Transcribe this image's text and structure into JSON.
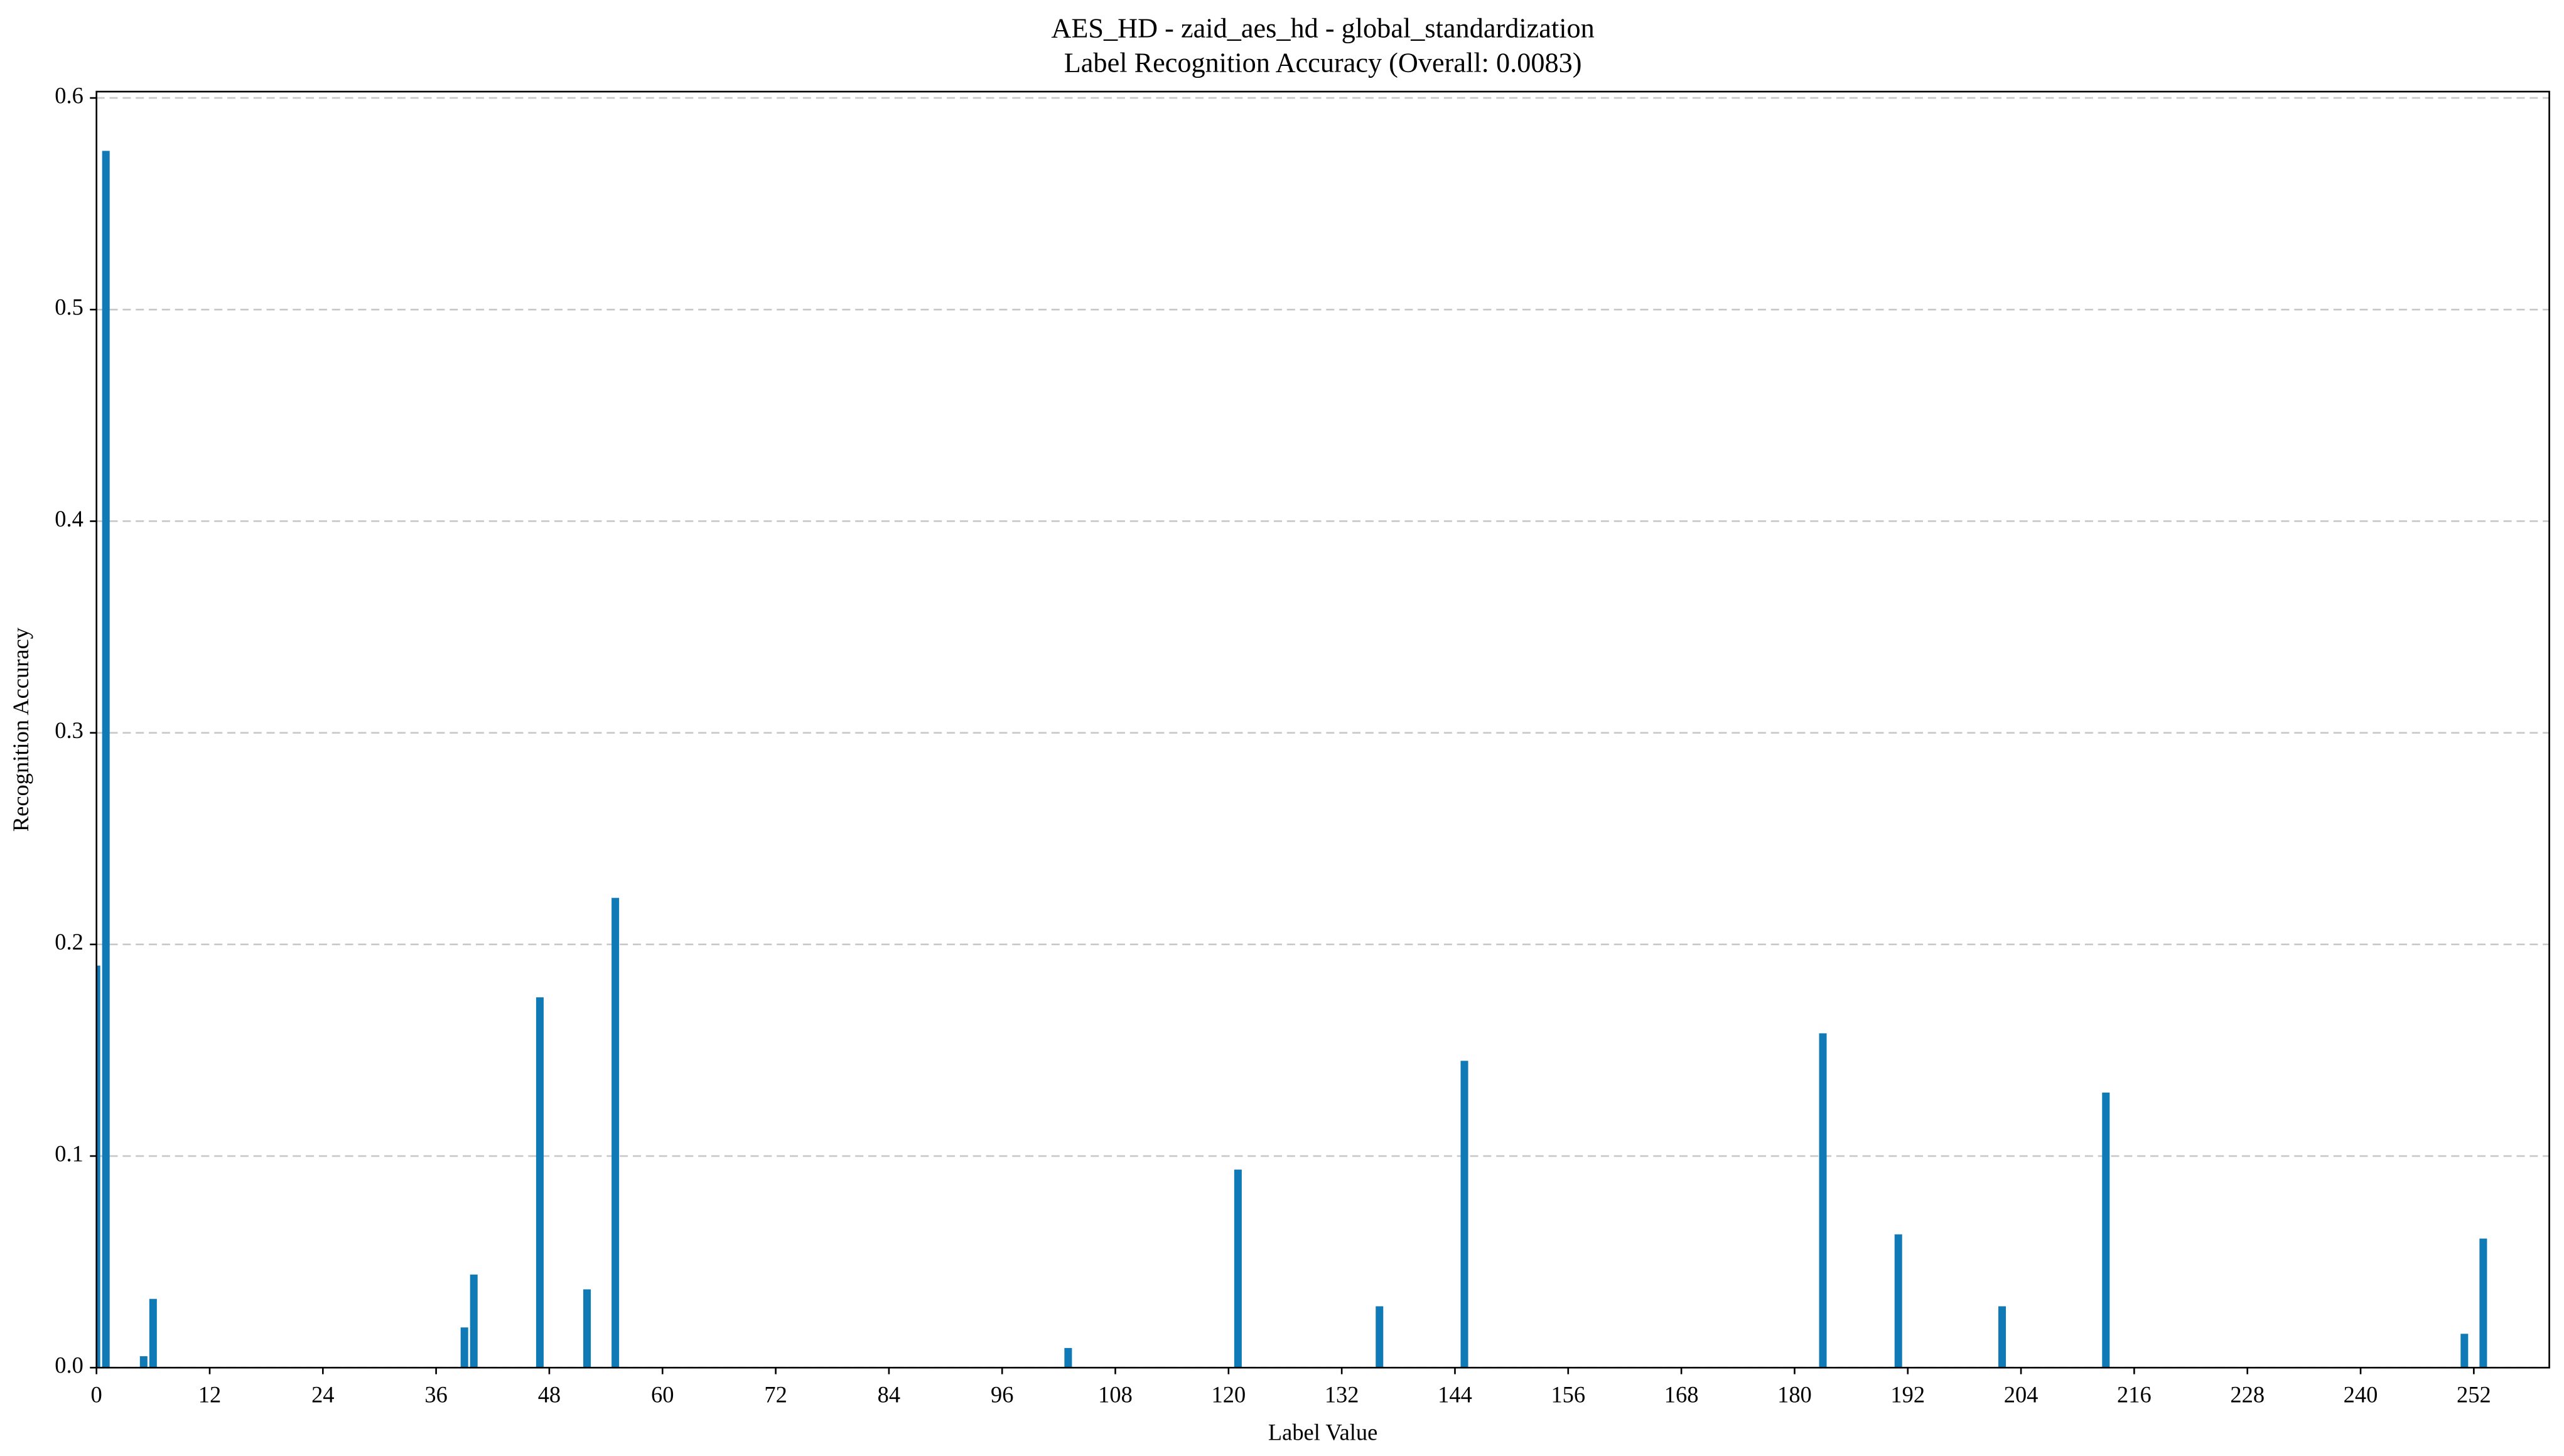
{
  "chart_data": {
    "type": "bar",
    "title": "AES_HD - zaid_aes_hd - global_standardization",
    "subtitle": "Label Recognition Accuracy (Overall: 0.0083)",
    "x_label": "Label Value",
    "y_label": "Recognition Accuracy",
    "x": [
      0,
      1,
      5,
      6,
      39,
      40,
      47,
      52,
      55,
      103,
      121,
      136,
      145,
      183,
      191,
      202,
      213,
      251,
      253
    ],
    "values": [
      0.19,
      0.575,
      0.0054,
      0.0325,
      0.019,
      0.044,
      0.175,
      0.037,
      0.222,
      0.0093,
      0.0936,
      0.029,
      0.145,
      0.158,
      0.063,
      0.029,
      0.13,
      0.016,
      0.061
    ],
    "color": "#0f7ab5",
    "bar_width": 0.8,
    "xlim": [
      0,
      260
    ],
    "ylim": [
      0,
      0.603
    ],
    "xticks": [
      0,
      12,
      24,
      36,
      48,
      60,
      72,
      84,
      96,
      108,
      120,
      132,
      144,
      156,
      168,
      180,
      192,
      204,
      216,
      228,
      240,
      252
    ],
    "yticks": [
      {
        "value": 0,
        "label": "0.0"
      },
      0.1,
      0.2,
      0.3,
      0.4,
      0.5,
      0.6
    ],
    "grid": true
  }
}
